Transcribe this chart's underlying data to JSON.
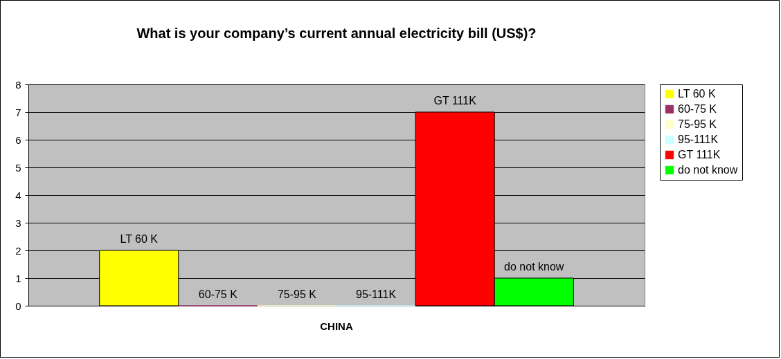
{
  "chart_data": {
    "type": "bar",
    "title": "What is your company’s current annual electricity bill (US$)?",
    "categories": [
      "CHINA"
    ],
    "ylim": [
      0,
      8
    ],
    "yticks": [
      0,
      1,
      2,
      3,
      4,
      5,
      6,
      7,
      8
    ],
    "grid": "y",
    "legend": "right",
    "series": [
      {
        "name": "LT 60 K",
        "color": "#ffff00",
        "values": [
          2
        ],
        "value_labels": [
          "LT 60 K"
        ]
      },
      {
        "name": "60-75 K",
        "color": "#993366",
        "values": [
          0
        ],
        "value_labels": [
          "60-75 K"
        ]
      },
      {
        "name": "75-95 K",
        "color": "#ffffcc",
        "values": [
          0
        ],
        "value_labels": [
          "75-95 K"
        ]
      },
      {
        "name": "95-111K",
        "color": "#ccffff",
        "values": [
          0
        ],
        "value_labels": [
          "95-111K"
        ]
      },
      {
        "name": "GT 111K",
        "color": "#ff0000",
        "values": [
          7
        ],
        "value_labels": [
          "GT 111K"
        ]
      },
      {
        "name": "do not know",
        "color": "#00ff00",
        "values": [
          1
        ],
        "value_labels": [
          "do not know"
        ]
      }
    ]
  }
}
